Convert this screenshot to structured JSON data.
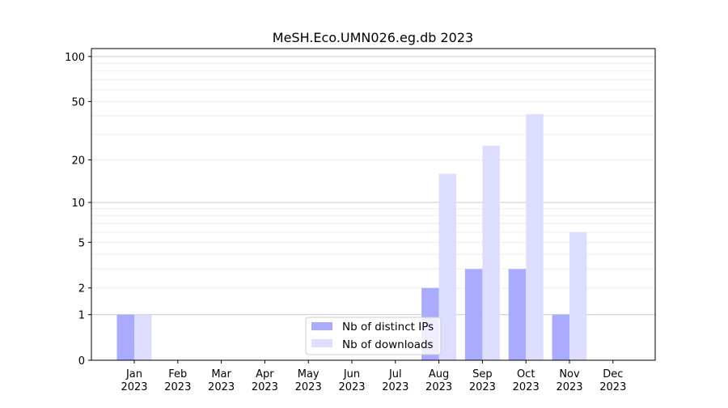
{
  "chart_data": {
    "type": "bar",
    "title": "MeSH.Eco.UMN026.eg.db 2023",
    "xlabel": "",
    "ylabel": "",
    "yscale": "log(1+x)",
    "ylim": [
      0,
      113
    ],
    "grid": true,
    "legend_position": "bottom-center",
    "categories": [
      [
        "Jan",
        "2023"
      ],
      [
        "Feb",
        "2023"
      ],
      [
        "Mar",
        "2023"
      ],
      [
        "Apr",
        "2023"
      ],
      [
        "May",
        "2023"
      ],
      [
        "Jun",
        "2023"
      ],
      [
        "Jul",
        "2023"
      ],
      [
        "Aug",
        "2023"
      ],
      [
        "Sep",
        "2023"
      ],
      [
        "Oct",
        "2023"
      ],
      [
        "Nov",
        "2023"
      ],
      [
        "Dec",
        "2023"
      ]
    ],
    "yticks": [
      0,
      1,
      2,
      5,
      10,
      20,
      50,
      100
    ],
    "series": [
      {
        "name": "Nb of distinct IPs",
        "color": "#aaaaff",
        "values": [
          1,
          0,
          0,
          0,
          0,
          0,
          0,
          2,
          3,
          3,
          1,
          0
        ]
      },
      {
        "name": "Nb of downloads",
        "color": "#ddddff",
        "values": [
          1,
          0,
          0,
          0,
          0,
          0,
          0,
          16,
          25,
          41,
          6,
          0
        ]
      }
    ]
  }
}
